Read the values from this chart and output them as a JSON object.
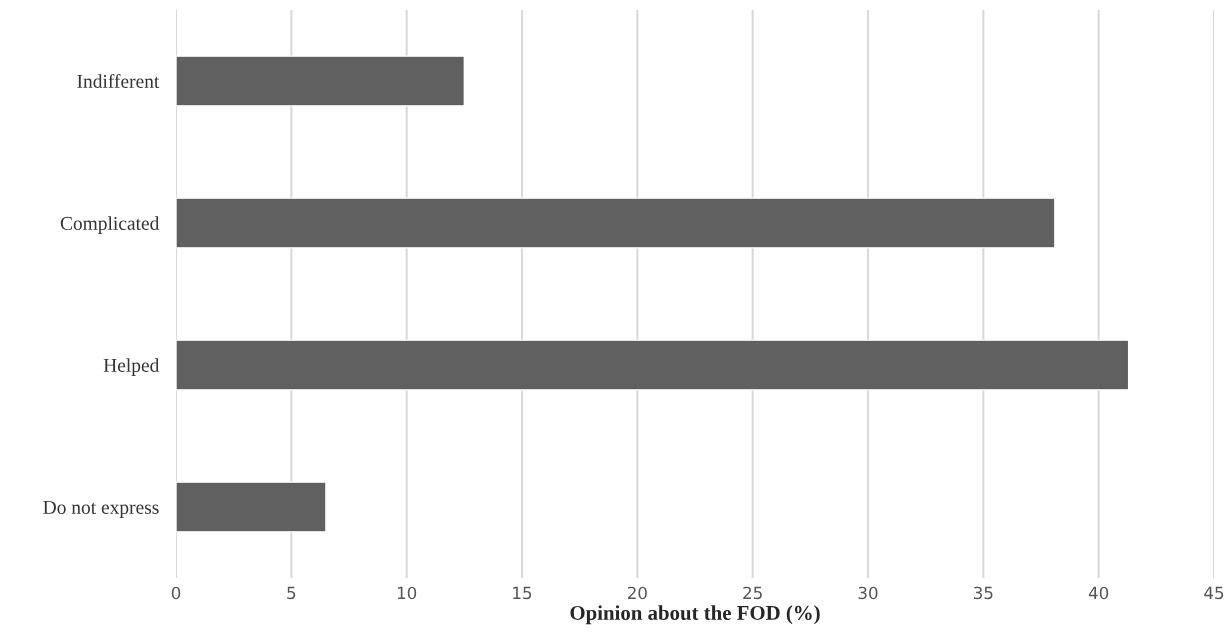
{
  "chart_data": {
    "type": "bar",
    "orientation": "horizontal",
    "xlabel": "Opinion about the FOD (%)",
    "categories": [
      "Indifferent",
      "Complicated",
      "Helped",
      "Do not express"
    ],
    "values": [
      12.5,
      38.1,
      41.3,
      6.5
    ],
    "color": "#606060",
    "xlim": [
      0,
      45
    ],
    "xticks": [
      0,
      5,
      10,
      15,
      20,
      25,
      30,
      35,
      40,
      45
    ],
    "grid": "x"
  }
}
